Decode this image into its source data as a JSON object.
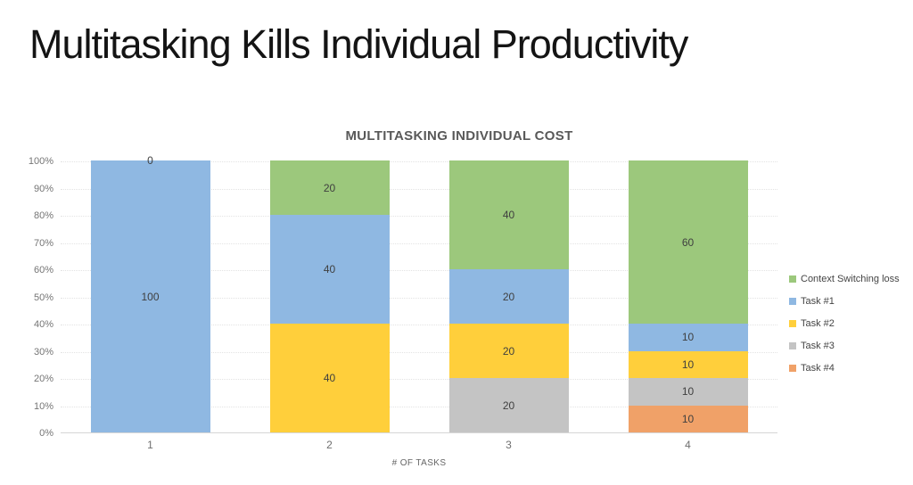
{
  "slide": {
    "title": "Multitasking Kills Individual Productivity"
  },
  "chart_data": {
    "type": "bar",
    "stacked": true,
    "title": "MULTITASKING INDIVIDUAL COST",
    "xlabel": "# OF TASKS",
    "ylabel": "",
    "categories": [
      "1",
      "2",
      "3",
      "4"
    ],
    "series": [
      {
        "name": "Task #4",
        "color": "#F0A168",
        "values": [
          0,
          0,
          0,
          10
        ],
        "labels": [
          "",
          "",
          "",
          "10"
        ]
      },
      {
        "name": "Task #3",
        "color": "#C4C4C4",
        "values": [
          0,
          0,
          20,
          10
        ],
        "labels": [
          "",
          "",
          "20",
          "10"
        ]
      },
      {
        "name": "Task #2",
        "color": "#FFCF3B",
        "values": [
          0,
          40,
          20,
          10
        ],
        "labels": [
          "",
          "40",
          "20",
          "10"
        ]
      },
      {
        "name": "Task #1",
        "color": "#8FB8E2",
        "values": [
          100,
          40,
          20,
          10
        ],
        "labels": [
          "100",
          "40",
          "20",
          "10"
        ]
      },
      {
        "name": "Context Switching loss",
        "color": "#9CC87C",
        "values": [
          0,
          20,
          40,
          60
        ],
        "labels": [
          "0",
          "20",
          "40",
          "60"
        ]
      }
    ],
    "stack_order": "bottom-to-top",
    "legend": [
      "Context Switching loss",
      "Task #1",
      "Task #2",
      "Task #3",
      "Task #4"
    ],
    "legend_position": "right",
    "y_ticks": [
      "0%",
      "10%",
      "20%",
      "30%",
      "40%",
      "50%",
      "60%",
      "70%",
      "80%",
      "90%",
      "100%"
    ],
    "ylim": [
      0,
      100
    ],
    "grid": true
  }
}
